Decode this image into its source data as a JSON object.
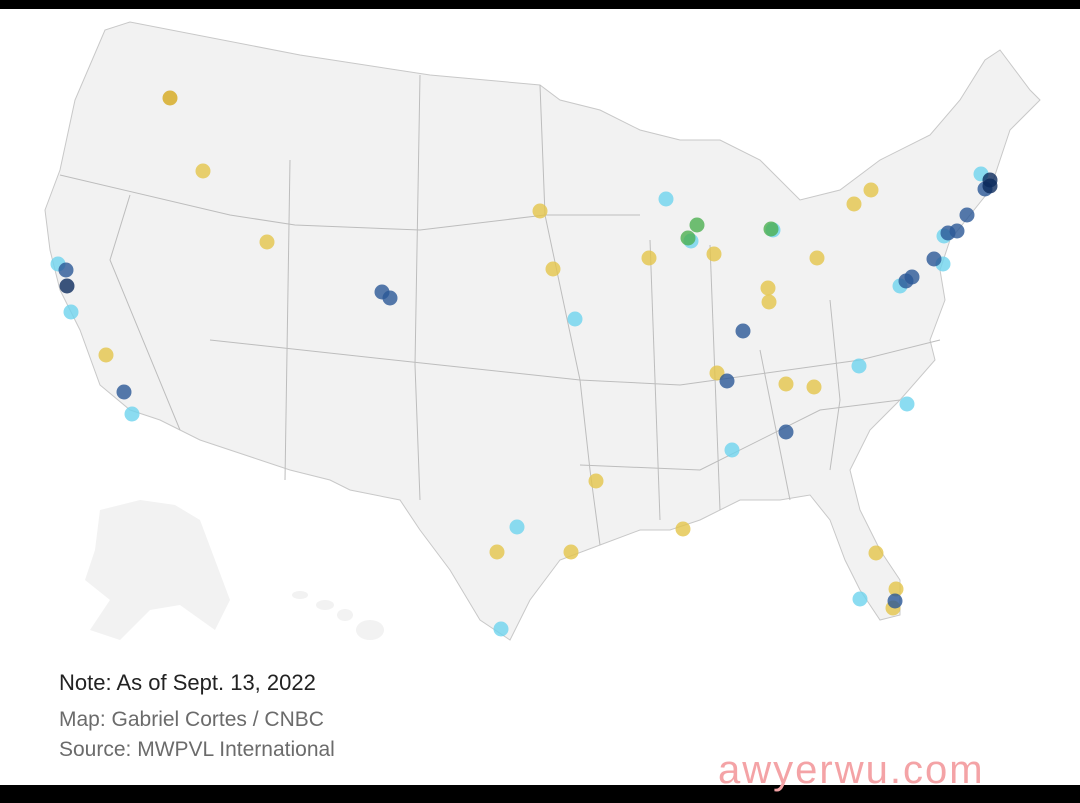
{
  "note": "Note: As of Sept. 13, 2022",
  "credits": {
    "map": "Map: Gabriel Cortes / CNBC",
    "source": "Source: MWPVL International"
  },
  "watermark": "awyerwu.com"
}
